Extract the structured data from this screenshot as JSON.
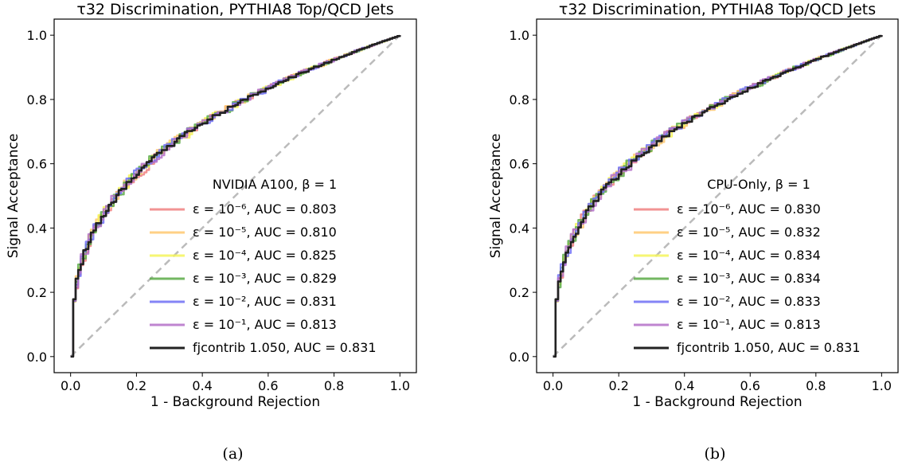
{
  "chart_data": [
    {
      "type": "line",
      "title": "τ32 Discrimination, PYTHIA8 Top/QCD Jets",
      "xlabel": "1 - Background Rejection",
      "ylabel": "Signal Acceptance",
      "xlim": [
        -0.05,
        1.05
      ],
      "ylim": [
        -0.05,
        1.05
      ],
      "xticks": [
        "0.0",
        "0.2",
        "0.4",
        "0.6",
        "0.8",
        "1.0"
      ],
      "yticks": [
        "0.0",
        "0.2",
        "0.4",
        "0.6",
        "0.8",
        "1.0"
      ],
      "legend_title": "NVIDIA A100, β = 1",
      "legend_position": "lower-right",
      "caption": "(a)",
      "series": [
        {
          "name": "ε = 10⁻⁶, AUC = 0.803",
          "color": "#f08080",
          "auc": 0.803
        },
        {
          "name": "ε = 10⁻⁵, AUC = 0.810",
          "color": "#ffc870",
          "auc": 0.81
        },
        {
          "name": "ε = 10⁻⁴, AUC = 0.825",
          "color": "#f5f55a",
          "auc": 0.825
        },
        {
          "name": "ε = 10⁻³, AUC = 0.829",
          "color": "#5aaa46",
          "auc": 0.829
        },
        {
          "name": "ε = 10⁻², AUC = 0.831",
          "color": "#6e6ef5",
          "auc": 0.831
        },
        {
          "name": "ε = 10⁻¹, AUC = 0.813",
          "color": "#b470c8",
          "auc": 0.813
        },
        {
          "name": "fjcontrib 1.050, AUC = 0.831",
          "color": "#222222",
          "auc": 0.831
        }
      ],
      "reference_line": {
        "x": [
          0,
          1
        ],
        "y": [
          0,
          1
        ],
        "color": "#bbbbbb",
        "style": "dashed"
      }
    },
    {
      "type": "line",
      "title": "τ32 Discrimination, PYTHIA8 Top/QCD Jets",
      "xlabel": "1 - Background Rejection",
      "ylabel": "Signal Acceptance",
      "xlim": [
        -0.05,
        1.05
      ],
      "ylim": [
        -0.05,
        1.05
      ],
      "xticks": [
        "0.0",
        "0.2",
        "0.4",
        "0.6",
        "0.8",
        "1.0"
      ],
      "yticks": [
        "0.0",
        "0.2",
        "0.4",
        "0.6",
        "0.8",
        "1.0"
      ],
      "legend_title": "CPU-Only, β = 1",
      "legend_position": "lower-right",
      "caption": "(b)",
      "series": [
        {
          "name": "ε = 10⁻⁶, AUC = 0.830",
          "color": "#f08080",
          "auc": 0.83
        },
        {
          "name": "ε = 10⁻⁵, AUC = 0.832",
          "color": "#ffc870",
          "auc": 0.832
        },
        {
          "name": "ε = 10⁻⁴, AUC = 0.834",
          "color": "#f5f55a",
          "auc": 0.834
        },
        {
          "name": "ε = 10⁻³, AUC = 0.834",
          "color": "#5aaa46",
          "auc": 0.834
        },
        {
          "name": "ε = 10⁻², AUC = 0.833",
          "color": "#6e6ef5",
          "auc": 0.833
        },
        {
          "name": "ε = 10⁻¹, AUC = 0.813",
          "color": "#b470c8",
          "auc": 0.813
        },
        {
          "name": "fjcontrib 1.050, AUC = 0.831",
          "color": "#222222",
          "auc": 0.831
        }
      ],
      "reference_line": {
        "x": [
          0,
          1
        ],
        "y": [
          0,
          1
        ],
        "color": "#bbbbbb",
        "style": "dashed"
      }
    }
  ]
}
